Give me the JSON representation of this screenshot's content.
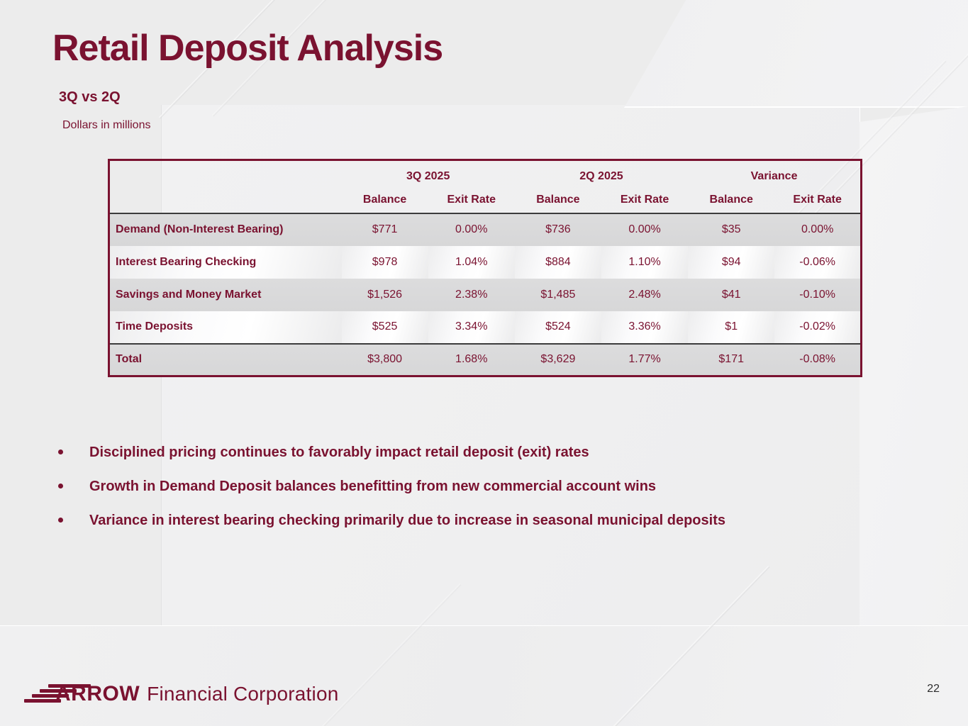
{
  "slide": {
    "title": "Retail Deposit Analysis",
    "subtitle": "3Q vs 2Q",
    "units_note": "Dollars in millions",
    "page_number": "22"
  },
  "table": {
    "column_groups": [
      "3Q 2025",
      "2Q 2025",
      "Variance"
    ],
    "sub_headers": [
      "Balance",
      "Exit Rate",
      "Balance",
      "Exit Rate",
      "Balance",
      "Exit Rate"
    ],
    "rows": [
      {
        "label": "Demand (Non-Interest Bearing)",
        "values": [
          "$771",
          "0.00%",
          "$736",
          "0.00%",
          "$35",
          "0.00%"
        ]
      },
      {
        "label": "Interest Bearing Checking",
        "values": [
          "$978",
          "1.04%",
          "$884",
          "1.10%",
          "$94",
          "-0.06%"
        ]
      },
      {
        "label": "Savings and Money Market",
        "values": [
          "$1,526",
          "2.38%",
          "$1,485",
          "2.48%",
          "$41",
          "-0.10%"
        ]
      },
      {
        "label": "Time Deposits",
        "values": [
          "$525",
          "3.34%",
          "$524",
          "3.36%",
          "$1",
          "-0.02%"
        ]
      },
      {
        "label": "Total",
        "values": [
          "$3,800",
          "1.68%",
          "$3,629",
          "1.77%",
          "$171",
          "-0.08%"
        ]
      }
    ]
  },
  "bullets": [
    "Disciplined pricing continues to favorably impact retail deposit (exit) rates",
    "Growth in Demand Deposit balances benefitting from new commercial account wins",
    "Variance in interest bearing checking primarily due to increase in seasonal municipal deposits"
  ],
  "footer": {
    "brand": "ARROW",
    "brand_suffix": "Financial Corporation"
  },
  "colors": {
    "maroon": "#7A1230",
    "row_gray": "#D9D9DA",
    "row_light": "#FBFBFC",
    "separator_dark": "#3C3C3C",
    "background": "#ECECEC"
  }
}
